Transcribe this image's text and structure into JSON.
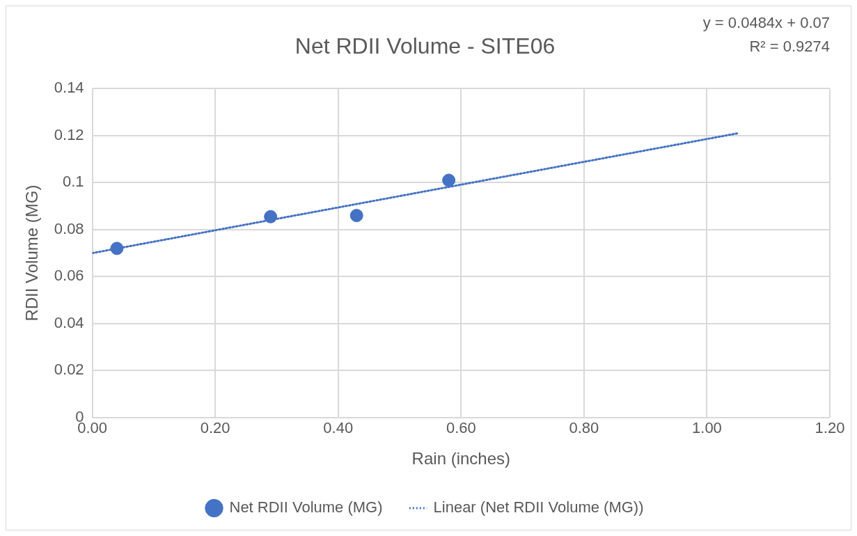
{
  "chart_data": {
    "type": "scatter",
    "title": "Net RDII Volume - SITE06",
    "xlabel": "Rain (inches)",
    "ylabel": "RDII Volume (MG)",
    "annotations": [
      "y = 0.0484x + 0.07",
      "R² = 0.9274"
    ],
    "series": [
      {
        "name": "Net RDII Volume (MG)",
        "color": "#4472c4",
        "type": "scatter",
        "marker": "circle",
        "x": [
          0.04,
          0.29,
          0.43,
          0.58
        ],
        "values": [
          0.072,
          0.0855,
          0.086,
          0.101
        ]
      },
      {
        "name": "Linear (Net RDII Volume (MG))",
        "color": "#4472c4",
        "type": "line",
        "line_style": "dotted",
        "marker": "none",
        "x": [
          0,
          1.05
        ],
        "values": [
          0.07,
          0.121
        ]
      }
    ],
    "xlim": [
      0,
      1.2
    ],
    "xticks": [
      {
        "value": 0,
        "label": "0.00"
      },
      {
        "value": 0.2,
        "label": "0.20"
      },
      {
        "value": 0.4,
        "label": "0.40"
      },
      {
        "value": 0.6,
        "label": "0.60"
      },
      {
        "value": 0.8,
        "label": "0.80"
      },
      {
        "value": 1,
        "label": "1.00"
      },
      {
        "value": 1.2,
        "label": "1.20"
      }
    ],
    "ylim": [
      0,
      0.14
    ],
    "yticks": [
      0,
      0.02,
      0.04,
      0.06,
      0.08,
      0.1,
      0.12,
      0.14
    ],
    "grid": true,
    "legend": "bottom"
  }
}
